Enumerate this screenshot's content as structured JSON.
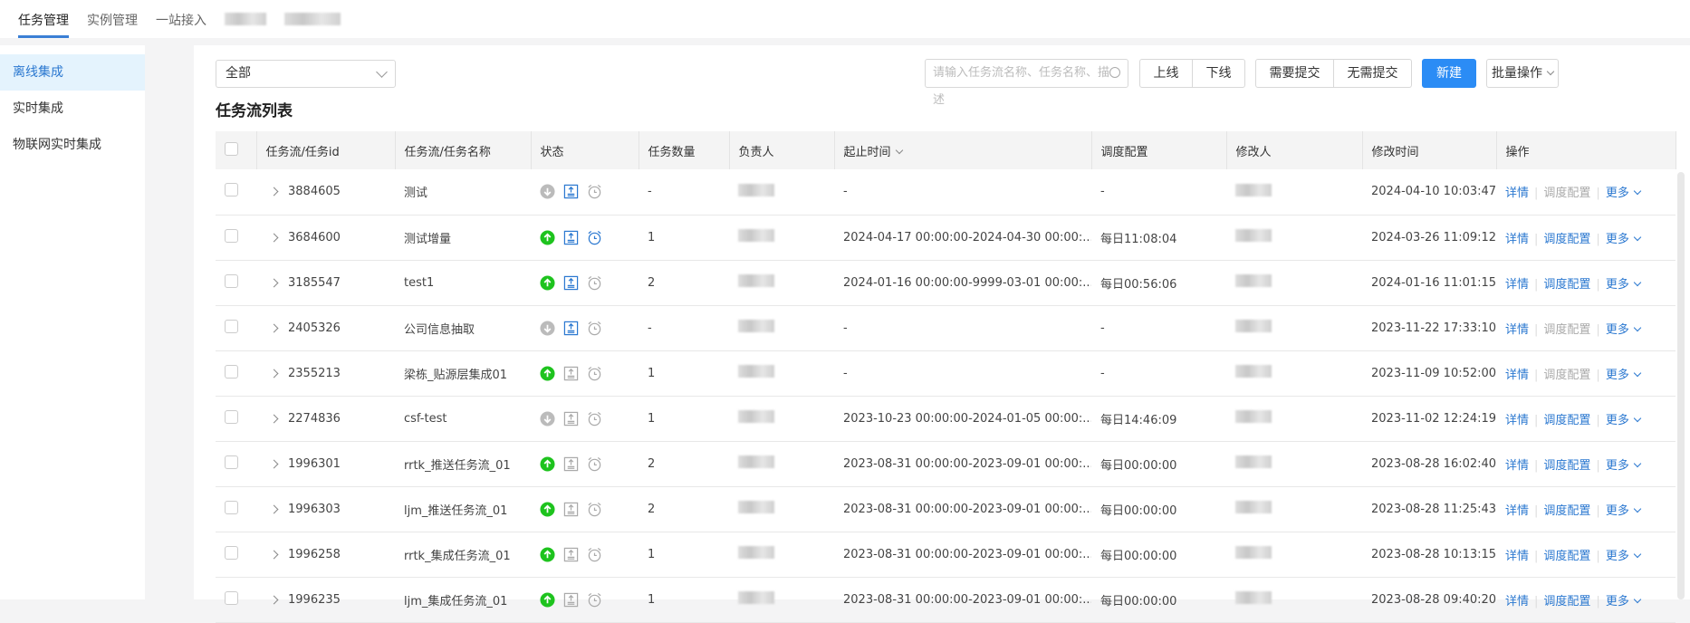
{
  "topnav": {
    "tabs": [
      {
        "label": "任务管理",
        "active": true
      },
      {
        "label": "实例管理"
      },
      {
        "label": "一站接入"
      }
    ]
  },
  "sidebar": {
    "items": [
      {
        "label": "离线集成",
        "active": true
      },
      {
        "label": "实时集成"
      },
      {
        "label": "物联网实时集成"
      }
    ]
  },
  "toolbar": {
    "filter_value": "全部",
    "search_placeholder": "请输入任务流名称、任务名称、描述",
    "online": "上线",
    "offline": "下线",
    "need_submit": "需要提交",
    "no_submit": "无需提交",
    "new": "新建",
    "batch": "批量操作"
  },
  "list_title": "任务流列表",
  "columns": [
    "任务流/任务id",
    "任务流/任务名称",
    "状态",
    "任务数量",
    "负责人",
    "起止时间",
    "调度配置",
    "修改人",
    "修改时间",
    "操作"
  ],
  "ops": {
    "detail": "详情",
    "schedule": "调度配置",
    "more": "更多"
  },
  "colors": {
    "accent": "#2b8cf5",
    "online": "#1ec31e",
    "offline": "#bbbbbb",
    "link": "#2b78d0"
  },
  "rows": [
    {
      "id": "3884605",
      "name": "测试",
      "online": false,
      "submit": true,
      "sched": false,
      "count": "-",
      "time": "-",
      "schedule": "-",
      "modtime": "2024-04-10 10:03:47"
    },
    {
      "id": "3684600",
      "name": "测试增量",
      "online": true,
      "submit": true,
      "sched": true,
      "count": "1",
      "time": "2024-04-17 00:00:00-2024-04-30 00:00:...",
      "schedule": "每日11:08:04",
      "modtime": "2024-03-26 11:09:12"
    },
    {
      "id": "3185547",
      "name": "test1",
      "online": true,
      "submit": true,
      "sched": false,
      "count": "2",
      "time": "2024-01-16 00:00:00-9999-03-01 00:00:...",
      "schedule": "每日00:56:06",
      "modtime": "2024-01-16 11:01:15"
    },
    {
      "id": "2405326",
      "name": "公司信息抽取",
      "online": false,
      "submit": true,
      "sched": false,
      "count": "-",
      "time": "-",
      "schedule": "-",
      "modtime": "2023-11-22 17:33:10"
    },
    {
      "id": "2355213",
      "name": "梁栋_贴源层集成01",
      "online": true,
      "submit": false,
      "sched": false,
      "count": "1",
      "time": "-",
      "schedule": "-",
      "modtime": "2023-11-09 10:52:00"
    },
    {
      "id": "2274836",
      "name": "csf-test",
      "online": false,
      "submit": false,
      "sched": false,
      "count": "1",
      "time": "2023-10-23 00:00:00-2024-01-05 00:00:...",
      "schedule": "每日14:46:09",
      "modtime": "2023-11-02 12:24:19"
    },
    {
      "id": "1996301",
      "name": "rrtk_推送任务流_01",
      "online": true,
      "submit": false,
      "sched": false,
      "count": "2",
      "time": "2023-08-31 00:00:00-2023-09-01 00:00:...",
      "schedule": "每日00:00:00",
      "modtime": "2023-08-28 16:02:40"
    },
    {
      "id": "1996303",
      "name": "ljm_推送任务流_01",
      "online": true,
      "submit": false,
      "sched": false,
      "count": "2",
      "time": "2023-08-31 00:00:00-2023-09-01 00:00:...",
      "schedule": "每日00:00:00",
      "modtime": "2023-08-28 11:25:43"
    },
    {
      "id": "1996258",
      "name": "rrtk_集成任务流_01",
      "online": true,
      "submit": false,
      "sched": false,
      "count": "1",
      "time": "2023-08-31 00:00:00-2023-09-01 00:00:...",
      "schedule": "每日00:00:00",
      "modtime": "2023-08-28 10:13:15"
    },
    {
      "id": "1996235",
      "name": "ljm_集成任务流_01",
      "online": true,
      "submit": false,
      "sched": false,
      "count": "1",
      "time": "2023-08-31 00:00:00-2023-09-01 00:00:...",
      "schedule": "每日00:00:00",
      "modtime": "2023-08-28 09:40:20"
    }
  ]
}
